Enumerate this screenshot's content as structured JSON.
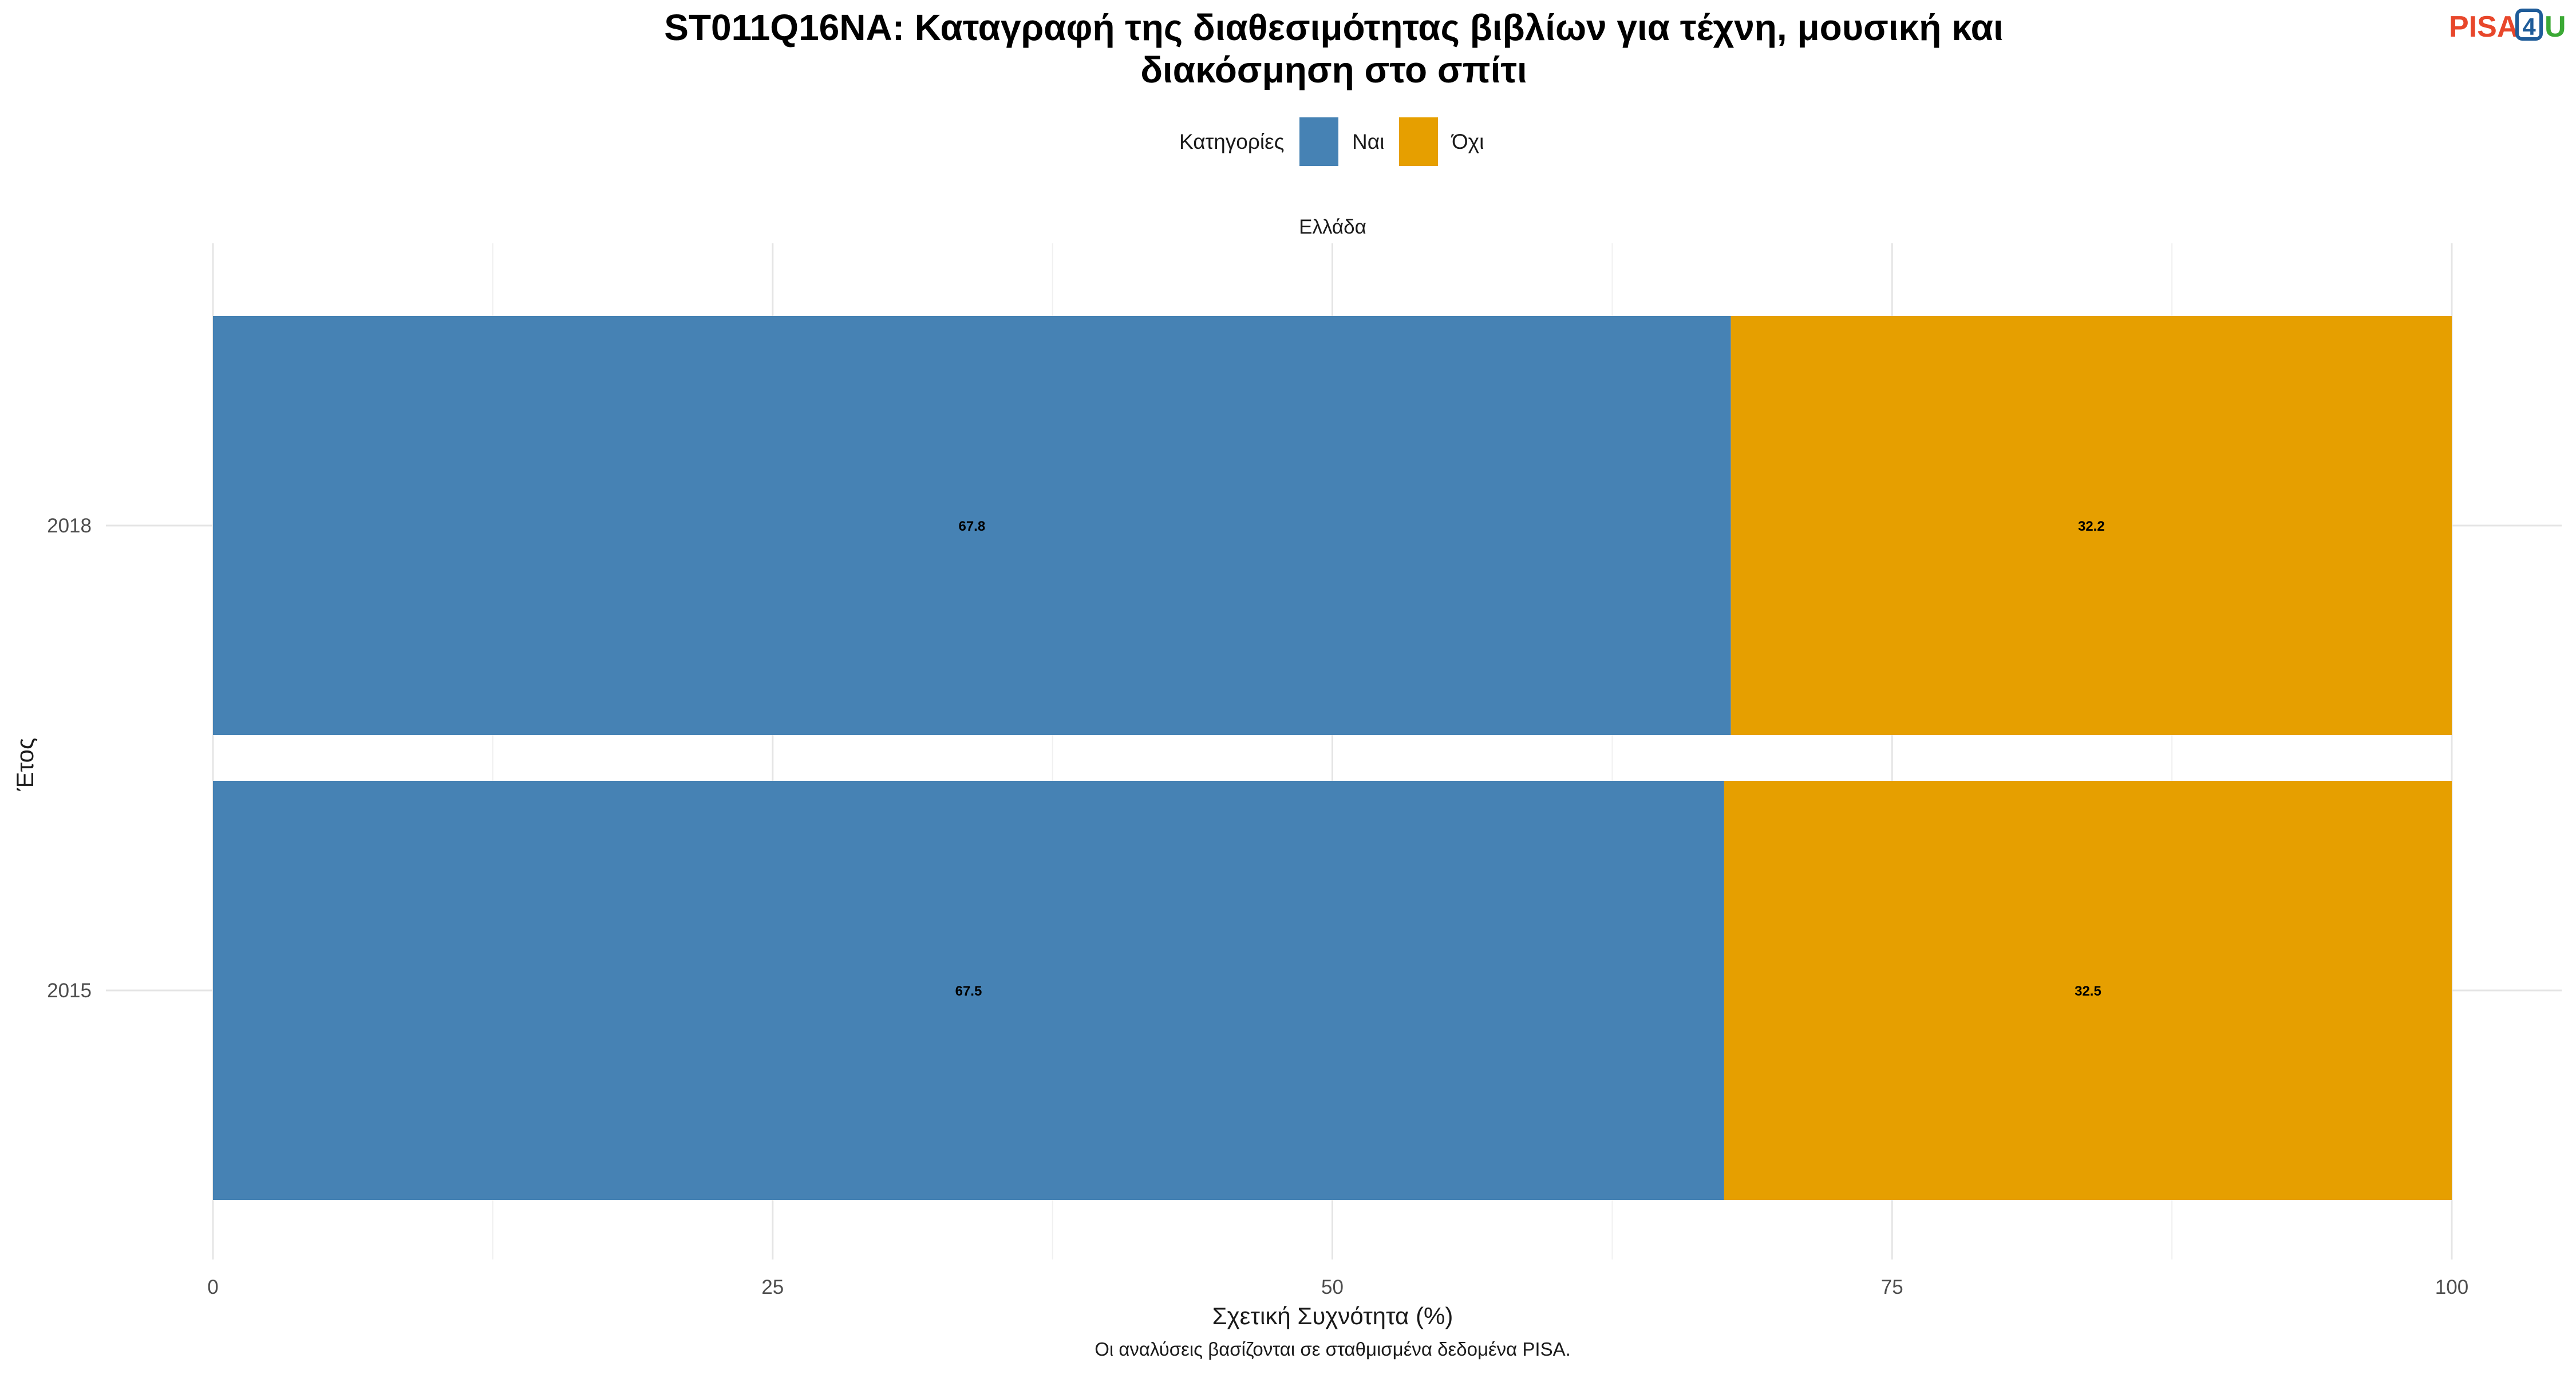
{
  "chart_data": {
    "type": "bar",
    "orientation": "horizontal",
    "stacked": true,
    "title_line1": "ST011Q16NA: Καταγραφή της διαθεσιμότητας βιβλίων για τέχνη, μουσική και",
    "title_line2": "διακόσμηση στο σπίτι",
    "facet": "Ελλάδα",
    "legend_title": "Κατηγορίες",
    "legend_position": "top",
    "categories": [
      "2018",
      "2015"
    ],
    "series": [
      {
        "name": "Ναι",
        "color": "#4682B4",
        "values": [
          67.8,
          67.5
        ],
        "labels": [
          "67.8",
          "67.5"
        ]
      },
      {
        "name": "Όχι",
        "color": "#E69F00",
        "values": [
          32.2,
          32.5
        ],
        "labels": [
          "32.2",
          "32.5"
        ]
      }
    ],
    "xlabel": "Σχετική Συχνότητα (%)",
    "ylabel": "Έτος",
    "xlim": [
      0,
      100
    ],
    "xticks": [
      0,
      25,
      50,
      75,
      100
    ],
    "xtick_labels": [
      "0",
      "25",
      "50",
      "75",
      "100"
    ],
    "grid": true,
    "caption": "Οι αναλύσεις βασίζονται σε σταθμισμένα δεδομένα PISA."
  },
  "logo": {
    "part1": "PISA",
    "part2": "4",
    "part3": "U",
    "color1": "#E8472B",
    "color2": "#1F5C99",
    "color3": "#3BA935"
  }
}
